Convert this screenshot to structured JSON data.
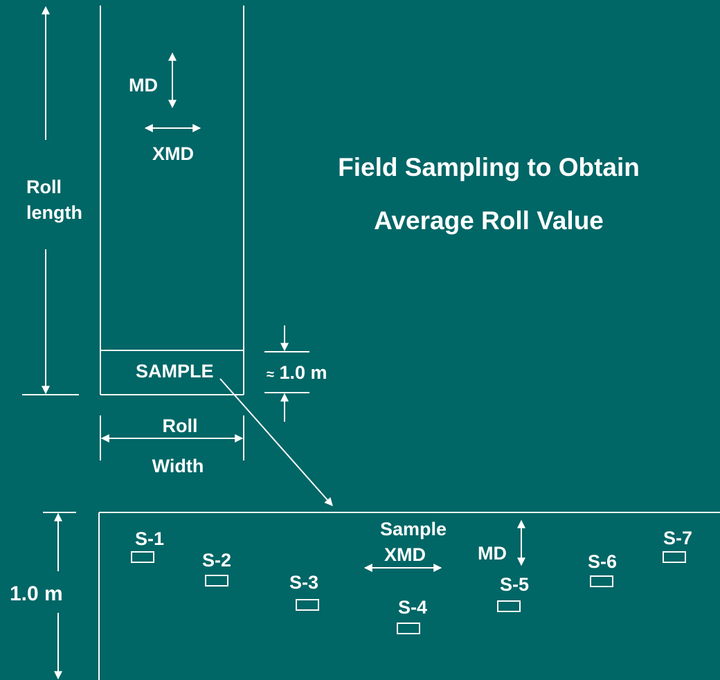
{
  "colors": {
    "background": "#006666",
    "foreground": "#ffffff"
  },
  "title": {
    "line1": "Field Sampling to Obtain",
    "line2": "Average Roll Value"
  },
  "roll": {
    "length_line1": "Roll",
    "length_line2": "length",
    "direction_md": "MD",
    "direction_xmd": "XMD",
    "sample_label": "SAMPLE",
    "sample_length": "1.0 m",
    "sample_length_prefix": "≈",
    "width_line1": "Roll",
    "width_line2": "Width"
  },
  "sample_detail": {
    "height_label": "1.0 m",
    "xmd_line1": "Sample",
    "xmd_line2": "XMD",
    "md_label": "MD",
    "specimens": [
      "S-1",
      "S-2",
      "S-3",
      "S-4",
      "S-5",
      "S-6",
      "S-7"
    ]
  }
}
